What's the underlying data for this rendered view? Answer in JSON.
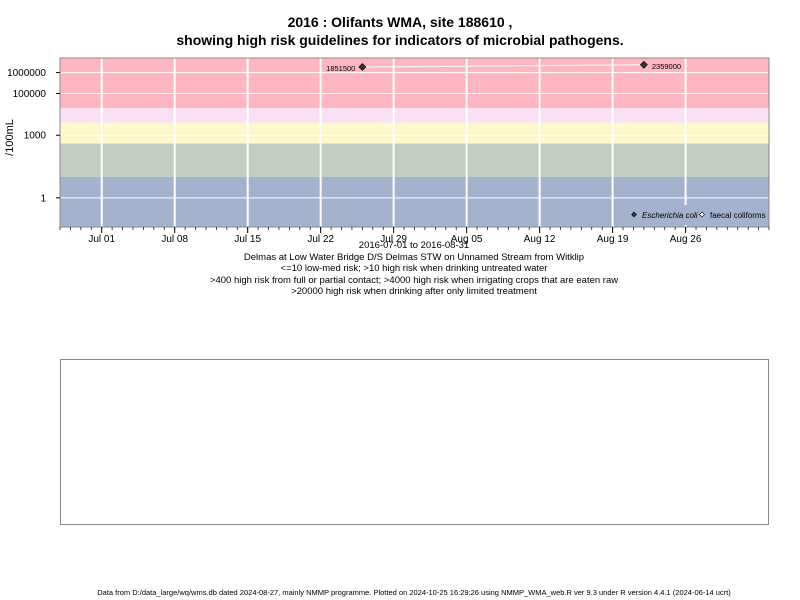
{
  "title_line1": "2016 : Olifants WMA, site 188610 ,",
  "title_line2": "showing high risk guidelines for indicators of microbial pathogens.",
  "subtitle_lines": [
    "2016-07-01 to 2016-08-31",
    "Delmas at Low Water Bridge D/S Delmas STW on Unnamed Stream from Witklip",
    "<=10 low-med risk; >10 high risk when drinking untreated water",
    ">400 high risk from full or partial contact; >4000 high risk when irrigating crops that are eaten raw",
    ">20000 high risk when drinking after only limited treatment"
  ],
  "footer": "Data from D:/data_large/wq/wms.db dated 2024-08-27, mainly NMMP programme. Plotted on 2024-10-25 16:29:26 using NMMP_WMA_web.R ver 9.3 under R version 4.4.1 (2024-06-14 ucrt)",
  "chart_data": {
    "type": "scatter",
    "ylabel": "/100mL",
    "y_scale": "log",
    "xlim": [
      "2016-06-27",
      "2016-09-03"
    ],
    "ylim": [
      0.04,
      5000000
    ],
    "x_ticks": [
      {
        "date": "2016-07-01",
        "label": "Jul 01"
      },
      {
        "date": "2016-07-08",
        "label": "Jul 08"
      },
      {
        "date": "2016-07-15",
        "label": "Jul 15"
      },
      {
        "date": "2016-07-22",
        "label": "Jul 22"
      },
      {
        "date": "2016-07-29",
        "label": "Jul 29"
      },
      {
        "date": "2016-08-05",
        "label": "Aug 05"
      },
      {
        "date": "2016-08-12",
        "label": "Aug 12"
      },
      {
        "date": "2016-08-19",
        "label": "Aug 19"
      },
      {
        "date": "2016-08-26",
        "label": "Aug 26"
      }
    ],
    "y_ticks": [
      {
        "value": 1,
        "label": "1"
      },
      {
        "value": 1000,
        "label": "1000"
      },
      {
        "value": 100000,
        "label": "100000"
      },
      {
        "value": 1000000,
        "label": "1000000"
      }
    ],
    "bands": [
      {
        "from": 0.04,
        "to": 10,
        "color": "#a3b2cd"
      },
      {
        "from": 10,
        "to": 400,
        "color": "#c4cdc2"
      },
      {
        "from": 400,
        "to": 4000,
        "color": "#fdf9cb"
      },
      {
        "from": 4000,
        "to": 20000,
        "color": "#fbe0f3"
      },
      {
        "from": 20000,
        "to": 5000000,
        "color": "#ffb6c3"
      }
    ],
    "series": [
      {
        "name": "Escherichia coli",
        "marker": "filled-diamond",
        "points": [
          {
            "x": "2016-07-26",
            "y": 1851500,
            "label": "1851500"
          },
          {
            "x": "2016-08-22",
            "y": 2359000,
            "label": "2359000"
          }
        ]
      },
      {
        "name": "faecal coliforms",
        "marker": "open-diamond",
        "points": []
      }
    ],
    "grid": true,
    "legend_position": "bottom-right"
  }
}
